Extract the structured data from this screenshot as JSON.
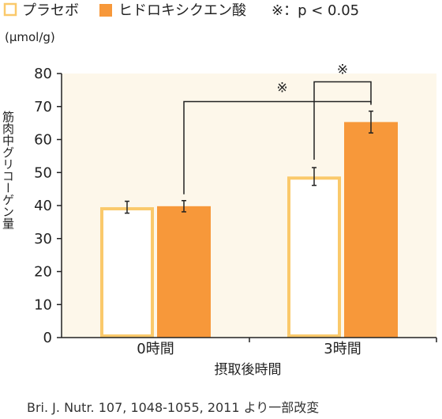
{
  "chart_data": {
    "type": "bar",
    "categories": [
      "0時間",
      "3時間"
    ],
    "series": [
      {
        "name": "プラセボ",
        "values": [
          39.5,
          48.8
        ],
        "errors": [
          1.8,
          2.7
        ],
        "color": "#fac96b",
        "style": "outline"
      },
      {
        "name": "ヒドロキシクエン酸",
        "values": [
          39.8,
          65.3
        ],
        "errors": [
          1.7,
          3.3
        ],
        "color": "#f7983a",
        "style": "filled"
      }
    ],
    "ylim": [
      0,
      80
    ],
    "yticks": [
      "0",
      "10",
      "20",
      "30",
      "40",
      "50",
      "60",
      "70",
      "80"
    ],
    "ylabel": "筋肉中グリコーゲン量",
    "xlabel": "摂取後時間",
    "unit_label": "(μmol/g)",
    "significance_note": "※：p < 0.05",
    "significance_marks": [
      {
        "label": "※",
        "comparison": "ヒドロキシクエン酸 0時間 vs 3時間"
      },
      {
        "label": "※",
        "comparison": "プラセボ vs ヒドロキシクエン酸 3時間"
      }
    ],
    "grid": false,
    "legend_position": "top-left",
    "plot_background": "#fdf7ea"
  },
  "source": "Bri. J. Nutr. 107, 1048-1055, 2011 より一部改変"
}
